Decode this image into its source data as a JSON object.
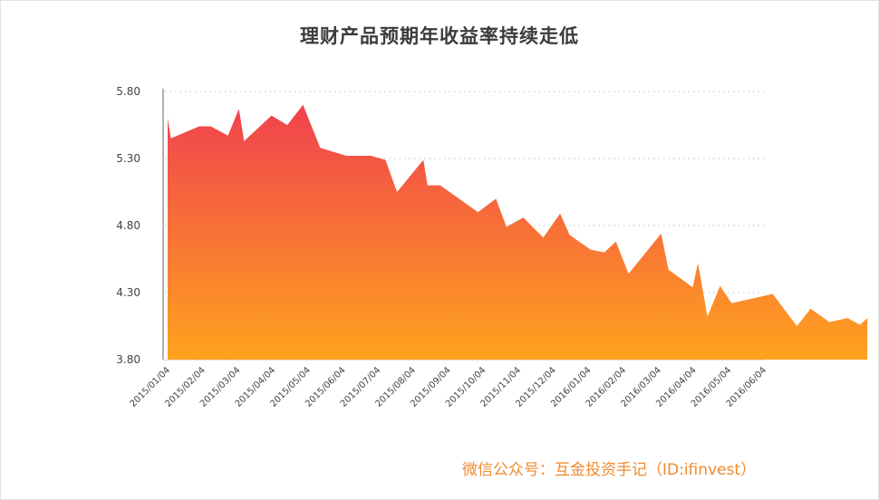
{
  "title": "理财产品预期年收益率持续走低",
  "watermark": "微信公众号：互金投资手记（ID:ifinvest）",
  "colors": {
    "area_top": "#f0414f",
    "area_bottom": "#ffa31e",
    "grid": "#cccccc",
    "axis": "#999999"
  },
  "chart_data": {
    "type": "area",
    "title": "理财产品预期年收益率持续走低",
    "xlabel": "",
    "ylabel": "",
    "ylim": [
      3.8,
      5.8
    ],
    "yticks": [
      "5.80",
      "5.30",
      "4.80",
      "4.30",
      "3.80"
    ],
    "grid": "horizontal dotted",
    "legend": "none",
    "xticks": [
      "2015/01/04",
      "2015/02/04",
      "2015/03/04",
      "2015/04/04",
      "2015/05/04",
      "2015/06/04",
      "2015/07/04",
      "2015/08/04",
      "2015/09/04",
      "2015/10/04",
      "2015/11/04",
      "2015/12/04",
      "2016/01/04",
      "2016/02/04",
      "2016/03/04",
      "2016/04/04",
      "2016/05/04",
      "2016/06/04"
    ],
    "series": [
      {
        "values": [
          5.6,
          5.45,
          5.54,
          5.54,
          5.47,
          5.67,
          5.43,
          5.62,
          5.55,
          5.7,
          5.38,
          5.32,
          5.32,
          5.29,
          5.05,
          5.29,
          5.1,
          5.1,
          4.9,
          5.0,
          4.79,
          4.86,
          4.71,
          4.89,
          4.73,
          4.62,
          4.6,
          4.68,
          4.44,
          4.74,
          4.47,
          4.34,
          4.52,
          4.12,
          4.35,
          4.22,
          4.29,
          4.05,
          4.18,
          4.08,
          4.11,
          4.06,
          4.11
        ],
        "x_positions": [
          0.0,
          0.09,
          0.9,
          1.23,
          1.72,
          2.03,
          2.18,
          2.96,
          3.41,
          3.86,
          4.35,
          5.1,
          5.79,
          6.21,
          6.54,
          7.29,
          7.41,
          7.77,
          8.85,
          9.36,
          9.66,
          10.14,
          10.71,
          11.19,
          11.46,
          12.06,
          12.45,
          12.78,
          13.14,
          14.07,
          14.28,
          14.97,
          15.12,
          15.39,
          15.75,
          16.08,
          17.25,
          17.94,
          18.33,
          18.87,
          19.38,
          19.74,
          19.95
        ]
      }
    ]
  }
}
